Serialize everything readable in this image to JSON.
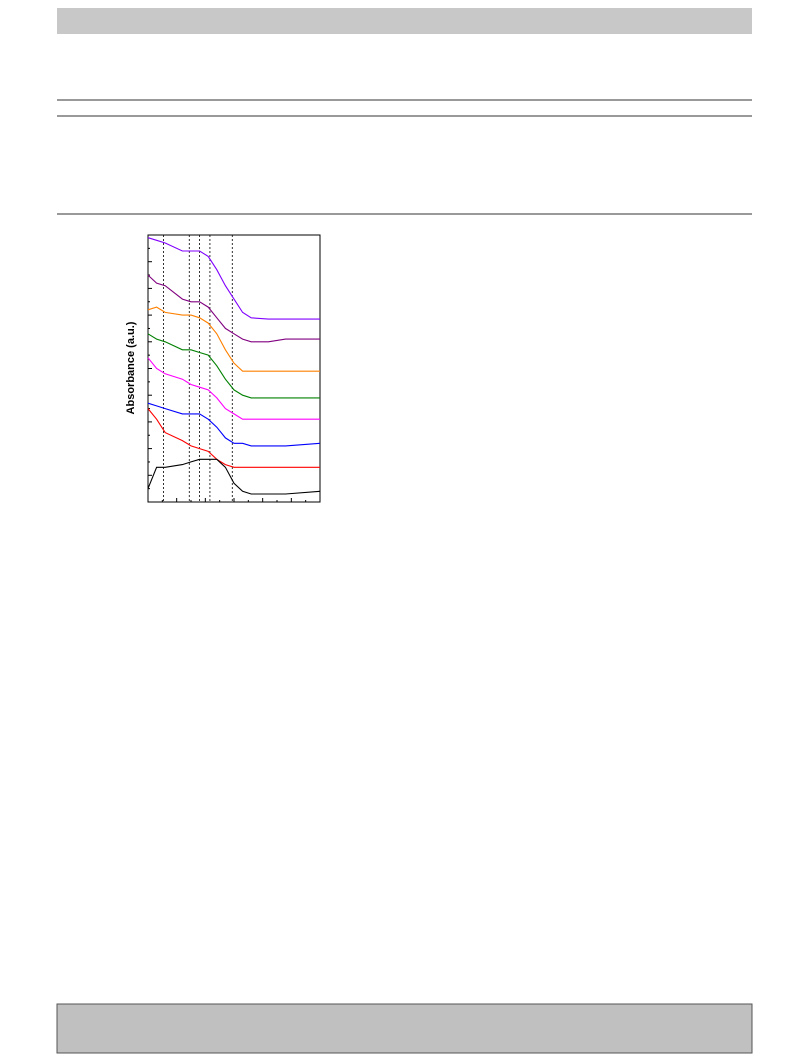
{
  "chart_data": {
    "type": "line",
    "ylabel": "Absorbance (a.u.)",
    "x": [
      0,
      5,
      10,
      20,
      25,
      30,
      35,
      40,
      45,
      50,
      55,
      60,
      70,
      80,
      100
    ],
    "xlim": [
      0,
      100
    ],
    "ylim": [
      0,
      100
    ],
    "reference_lines": [
      9,
      24,
      30,
      36,
      49
    ],
    "series": [
      {
        "color": "#8000ff",
        "values": [
          99,
          98,
          97,
          94,
          94,
          94,
          92,
          87,
          81,
          76,
          71,
          69,
          68.5,
          68.5,
          68.5
        ]
      },
      {
        "color": "#800080",
        "values": [
          85,
          82,
          81,
          76,
          75,
          75,
          73,
          69,
          65,
          63,
          61,
          60,
          60,
          61,
          61
        ]
      },
      {
        "color": "#ff8000",
        "values": [
          72,
          73,
          71,
          70,
          70,
          69,
          67,
          63,
          57,
          52,
          49,
          49,
          49,
          49,
          49
        ]
      },
      {
        "color": "#008000",
        "values": [
          63,
          61,
          60,
          57,
          57,
          56,
          55,
          51,
          46,
          42,
          40,
          39,
          39,
          39,
          39
        ]
      },
      {
        "color": "#ff00ff",
        "values": [
          54,
          50,
          48,
          46,
          44,
          43,
          42,
          39,
          35,
          33,
          31,
          31,
          31,
          31,
          31
        ]
      },
      {
        "color": "#0000ff",
        "values": [
          37,
          36,
          35,
          33,
          33,
          33,
          31,
          28,
          24,
          22,
          22,
          21,
          21,
          21,
          22
        ]
      },
      {
        "color": "#ff0000",
        "values": [
          35,
          31,
          26,
          23,
          21,
          20,
          19,
          16,
          14,
          13,
          13,
          13,
          13,
          13,
          13
        ]
      },
      {
        "color": "#000000",
        "values": [
          5,
          13,
          13,
          14,
          15,
          16,
          16,
          16,
          13,
          7,
          4,
          3,
          3,
          3,
          4
        ]
      }
    ]
  }
}
